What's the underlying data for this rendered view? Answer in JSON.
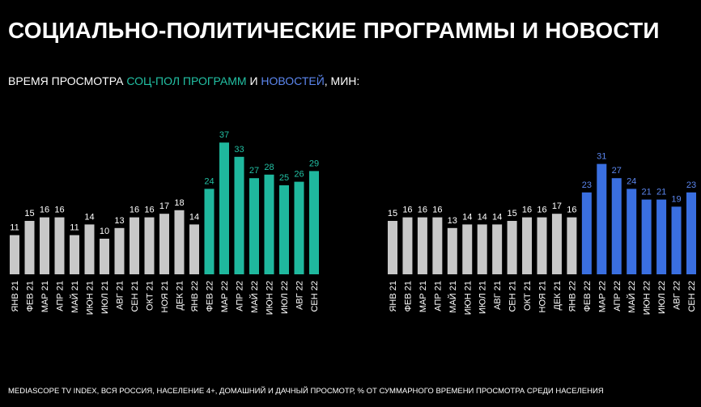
{
  "title": "СОЦИАЛЬНО-ПОЛИТИЧЕСКИЕ ПРОГРАММЫ И НОВОСТИ",
  "subtitle": [
    {
      "text": "ВРЕМЯ ПРОСМОТРА ",
      "color": "#ffffff"
    },
    {
      "text": "СОЦ-ПОЛ ПРОГРАММ",
      "color": "#22c1a4"
    },
    {
      "text": " И ",
      "color": "#ffffff"
    },
    {
      "text": "НОВОСТЕЙ",
      "color": "#5b86ee"
    },
    {
      "text": ", МИН:",
      "color": "#ffffff"
    }
  ],
  "chart_data": [
    {
      "type": "bar",
      "categories": [
        "ЯНВ 21",
        "ФЕВ 21",
        "МАР 21",
        "АПР 21",
        "МАЙ 21",
        "ИЮН 21",
        "ИЮЛ 21",
        "АВГ 21",
        "СЕН 21",
        "ОКТ 21",
        "НОЯ 21",
        "ДЕК 21",
        "ЯНВ 22",
        "ФЕВ 22",
        "МАР 22",
        "АПР 22",
        "МАЙ 22",
        "ИЮН 22",
        "ИЮЛ 22",
        "АВГ 22",
        "СЕН 22"
      ],
      "values": [
        11,
        15,
        16,
        16,
        11,
        14,
        10,
        13,
        16,
        16,
        17,
        18,
        14,
        24,
        37,
        33,
        27,
        28,
        25,
        26,
        29
      ],
      "colors": [
        "#c8c8c8",
        "#c8c8c8",
        "#c8c8c8",
        "#c8c8c8",
        "#c8c8c8",
        "#c8c8c8",
        "#c8c8c8",
        "#c8c8c8",
        "#c8c8c8",
        "#c8c8c8",
        "#c8c8c8",
        "#c8c8c8",
        "#c8c8c8",
        "#1fb89e",
        "#1fb89e",
        "#1fb89e",
        "#1fb89e",
        "#1fb89e",
        "#1fb89e",
        "#1fb89e",
        "#1fb89e"
      ],
      "label_colors": [
        "#ffffff",
        "#ffffff",
        "#ffffff",
        "#ffffff",
        "#ffffff",
        "#ffffff",
        "#ffffff",
        "#ffffff",
        "#ffffff",
        "#ffffff",
        "#ffffff",
        "#ffffff",
        "#ffffff",
        "#22c1a4",
        "#22c1a4",
        "#22c1a4",
        "#22c1a4",
        "#22c1a4",
        "#22c1a4",
        "#22c1a4",
        "#22c1a4"
      ]
    },
    {
      "type": "bar",
      "categories": [
        "ЯНВ 21",
        "ФЕВ 21",
        "МАР 21",
        "АПР 21",
        "МАЙ 21",
        "ИЮН 21",
        "ИЮЛ 21",
        "АВГ 21",
        "СЕН 21",
        "ОКТ 21",
        "НОЯ 21",
        "ДЕК 21",
        "ЯНВ 22",
        "ФЕВ 22",
        "МАР 22",
        "АПР 22",
        "МАЙ 22",
        "ИЮН 22",
        "ИЮЛ 22",
        "АВГ 22",
        "СЕН 22"
      ],
      "values": [
        15,
        16,
        16,
        16,
        13,
        14,
        14,
        14,
        15,
        16,
        16,
        17,
        16,
        23,
        31,
        27,
        24,
        21,
        21,
        19,
        23
      ],
      "colors": [
        "#c8c8c8",
        "#c8c8c8",
        "#c8c8c8",
        "#c8c8c8",
        "#c8c8c8",
        "#c8c8c8",
        "#c8c8c8",
        "#c8c8c8",
        "#c8c8c8",
        "#c8c8c8",
        "#c8c8c8",
        "#c8c8c8",
        "#c8c8c8",
        "#3a6fe0",
        "#3a6fe0",
        "#3a6fe0",
        "#3a6fe0",
        "#3a6fe0",
        "#3a6fe0",
        "#3a6fe0",
        "#3a6fe0"
      ],
      "label_colors": [
        "#ffffff",
        "#ffffff",
        "#ffffff",
        "#ffffff",
        "#ffffff",
        "#ffffff",
        "#ffffff",
        "#ffffff",
        "#ffffff",
        "#ffffff",
        "#ffffff",
        "#ffffff",
        "#ffffff",
        "#5b86ee",
        "#5b86ee",
        "#5b86ee",
        "#5b86ee",
        "#5b86ee",
        "#5b86ee",
        "#5b86ee",
        "#5b86ee"
      ]
    }
  ],
  "footnote": "MEDIASCOPE TV INDEX, ВСЯ РОССИЯ, НАСЕЛЕНИЕ 4+, ДОМАШНИЙ И ДАЧНЫЙ ПРОСМОТР, % ОТ СУММАРНОГО ВРЕМЕНИ ПРОСМОТРА СРЕДИ НАСЕЛЕНИЯ"
}
